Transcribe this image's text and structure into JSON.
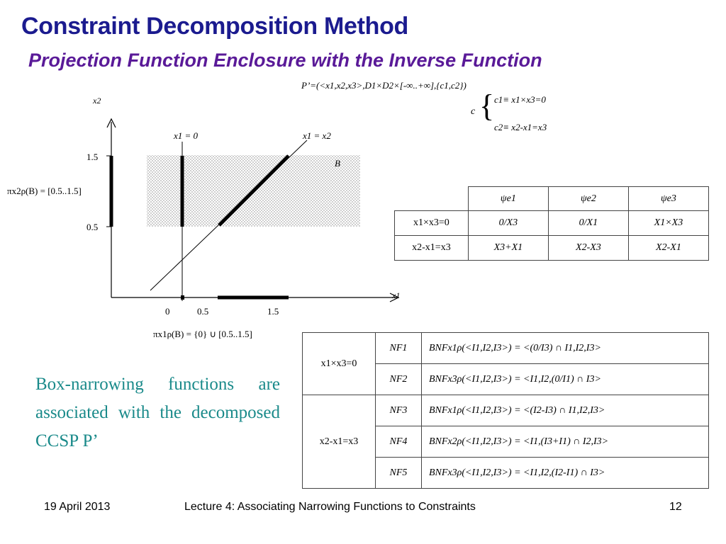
{
  "title": "Constraint Decomposition Method",
  "subtitle": "Projection Function Enclosure with the Inverse Function",
  "problem": {
    "p_def": "P’=(<x1,x2,x3>,D1×D2×[-∞..+∞],{c1,c2})",
    "c_label": "c",
    "c1_def": "c1≡ x1×x3=0",
    "c2_def": "c2≡ x2-x1=x3"
  },
  "plot": {
    "y_axis_label": "x2",
    "x_axis_label": "x1",
    "line_label_vertical": "x1 = 0",
    "line_label_diagonal": "x1 = x2",
    "box_label": "B",
    "y_ticks": [
      "1.5",
      "0.5"
    ],
    "x_ticks": [
      "0",
      "0.5",
      "1.5"
    ],
    "proj_y_label": "πx2ρ(B) = [0.5..1.5]",
    "proj_x_label": "πx1ρ(B) = {0} ∪ [0.5..1.5]"
  },
  "inverse_table": {
    "headers": [
      "ψe1",
      "ψe2",
      "ψe3"
    ],
    "rows": [
      {
        "constraint": "x1×x3=0",
        "cells": [
          "0/X3",
          "0/X1",
          "X1×X3"
        ]
      },
      {
        "constraint": "x2-x1=x3",
        "cells": [
          "X3+X1",
          "X2-X3",
          "X2-X1"
        ]
      }
    ]
  },
  "nf_table": {
    "groups": [
      {
        "constraint": "x1×x3=0",
        "rows": [
          {
            "nf": "NF1",
            "def": "BNFx1ρ(<I1,I2,I3>)  = <(0/I3) ∩ I1,I2,I3>"
          },
          {
            "nf": "NF2",
            "def": "BNFx3ρ(<I1,I2,I3>) = <I1,I2,(0/I1) ∩ I3>"
          }
        ]
      },
      {
        "constraint": "x2-x1=x3",
        "rows": [
          {
            "nf": "NF3",
            "def": "BNFx1ρ(<I1,I2,I3>)  = <(I2-I3) ∩ I1,I2,I3>"
          },
          {
            "nf": "NF4",
            "def": "BNFx2ρ(<I1,I2,I3>) = <I1,(I3+I1) ∩ I2,I3>"
          },
          {
            "nf": "NF5",
            "def": "BNFx3ρ(<I1,I2,I3>) = <I1,I2,(I2-I1) ∩ I3>"
          }
        ]
      }
    ]
  },
  "caption": "Box-narrowing functions are associated with the decomposed CCSP P’",
  "footer": {
    "date": "19 April 2013",
    "lecture": "Lecture 4: Associating Narrowing Functions to Constraints",
    "page": "12"
  },
  "colors": {
    "title": "#1b1b8f",
    "subtitle": "#5a1a98",
    "caption": "#1a8a8a"
  }
}
